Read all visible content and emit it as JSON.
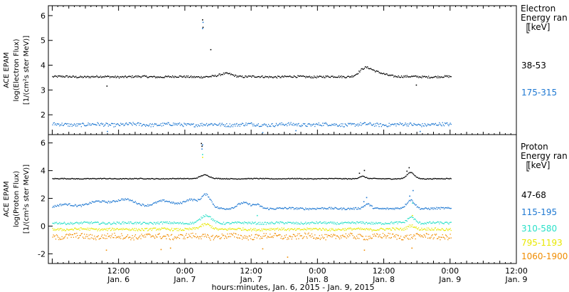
{
  "chart_data": [
    {
      "type": "scatter",
      "panel": "electron",
      "ylabel_lines": [
        "ACE EPAM",
        "log(Electron Flux)",
        "[1/(cm²s ster MeV)]"
      ],
      "legend_title_lines": [
        "Electron",
        "Energy ran",
        "[keV]"
      ],
      "ylim": [
        1.2,
        6.4
      ],
      "yticks": [
        2,
        3,
        4,
        5,
        6
      ],
      "series": [
        {
          "name": "38-53",
          "color": "#000000",
          "baseline": 3.55,
          "jitter": 0.04,
          "features": [
            {
              "t": 31.5,
              "v": 3.68,
              "w": 1.6
            },
            {
              "t": 56.5,
              "v": 3.82,
              "w": 1.5
            },
            {
              "t": 58.5,
              "v": 3.72,
              "w": 2.5
            }
          ],
          "outliers": [
            {
              "t": 27.1,
              "v": 5.85
            },
            {
              "t": 27.2,
              "v": 5.55
            },
            {
              "t": 28.6,
              "v": 4.65
            },
            {
              "t": 9.8,
              "v": 3.18
            },
            {
              "t": 65.8,
              "v": 3.22
            }
          ]
        },
        {
          "name": "175-315",
          "color": "#1e78d2",
          "baseline": 1.62,
          "jitter": 0.07,
          "features": [],
          "outliers": [
            {
              "t": 27.2,
              "v": 5.75
            },
            {
              "t": 27.1,
              "v": 5.5
            },
            {
              "t": 9.9,
              "v": 1.35
            },
            {
              "t": 38.0,
              "v": 1.3
            },
            {
              "t": 44.0,
              "v": 1.38
            },
            {
              "t": 66.5,
              "v": 1.35
            }
          ]
        }
      ]
    },
    {
      "type": "scatter",
      "panel": "proton",
      "ylabel_lines": [
        "ACE EPAM",
        "log(Proton Flux)",
        "[1/(cm²s ster MeV)]"
      ],
      "legend_title_lines": [
        "Proton",
        "Energy ran",
        "[keV]"
      ],
      "ylim": [
        -2.7,
        6.6
      ],
      "yticks": [
        -2,
        0,
        2,
        4,
        6
      ],
      "series": [
        {
          "name": "47-68",
          "color": "#000000",
          "baseline": 3.45,
          "jitter": 0.03,
          "features": [
            {
              "t": 27.5,
              "v": 3.72,
              "w": 1.2
            },
            {
              "t": 56.0,
              "v": 3.62,
              "w": 0.8
            },
            {
              "t": 64.8,
              "v": 3.9,
              "w": 0.9
            }
          ],
          "outliers": [
            {
              "t": 26.9,
              "v": 6.0
            },
            {
              "t": 27.0,
              "v": 5.8
            },
            {
              "t": 64.5,
              "v": 4.25
            },
            {
              "t": 64.1,
              "v": 4.0
            },
            {
              "t": 56.4,
              "v": 4.05
            },
            {
              "t": 55.5,
              "v": 3.85
            }
          ]
        },
        {
          "name": "115-195",
          "color": "#1e78d2",
          "baseline": 1.3,
          "jitter": 0.07,
          "features": [
            {
              "t": 2.5,
              "v": 1.6,
              "w": 2.5
            },
            {
              "t": 8.0,
              "v": 1.75,
              "w": 2.5
            },
            {
              "t": 13.0,
              "v": 1.95,
              "w": 3.0
            },
            {
              "t": 20.0,
              "v": 1.85,
              "w": 2.5
            },
            {
              "t": 25.0,
              "v": 1.95,
              "w": 2.0
            },
            {
              "t": 27.8,
              "v": 2.2,
              "w": 1.2
            },
            {
              "t": 34.5,
              "v": 1.7,
              "w": 1.5
            },
            {
              "t": 37.0,
              "v": 1.55,
              "w": 1.0
            },
            {
              "t": 57.0,
              "v": 1.6,
              "w": 0.8
            },
            {
              "t": 64.8,
              "v": 1.9,
              "w": 1.0
            }
          ],
          "outliers": [
            {
              "t": 27.1,
              "v": 5.9
            },
            {
              "t": 27.0,
              "v": 5.6
            },
            {
              "t": 65.2,
              "v": 2.6
            },
            {
              "t": 64.6,
              "v": 2.2
            },
            {
              "t": 56.8,
              "v": 2.1
            },
            {
              "t": 56.3,
              "v": 1.8
            }
          ]
        },
        {
          "name": "310-580",
          "color": "#2ae0c8",
          "baseline": 0.25,
          "jitter": 0.08,
          "features": [
            {
              "t": 27.8,
              "v": 0.8,
              "w": 1.3
            },
            {
              "t": 64.9,
              "v": 0.7,
              "w": 0.9
            }
          ],
          "outliers": [
            {
              "t": 27.1,
              "v": 5.2
            },
            {
              "t": 65.1,
              "v": 1.7
            },
            {
              "t": 37.0,
              "v": 0.8
            }
          ]
        },
        {
          "name": "795-1193",
          "color": "#e8e800",
          "baseline": -0.2,
          "jitter": 0.09,
          "features": [
            {
              "t": 27.8,
              "v": 0.15,
              "w": 1.3
            },
            {
              "t": 64.9,
              "v": 0.1,
              "w": 0.9
            }
          ],
          "outliers": [
            {
              "t": 27.1,
              "v": 5.0
            },
            {
              "t": 65.1,
              "v": 0.8
            }
          ]
        },
        {
          "name": "1060-1900",
          "color": "#f08c00",
          "baseline": -0.72,
          "jitter": 0.2,
          "features": [],
          "outliers": [
            {
              "t": 9.7,
              "v": -1.7
            },
            {
              "t": 19.6,
              "v": -1.65
            },
            {
              "t": 21.3,
              "v": -1.55
            },
            {
              "t": 42.5,
              "v": -2.2
            },
            {
              "t": 38.0,
              "v": -1.6
            },
            {
              "t": 56.4,
              "v": -1.7
            },
            {
              "t": 65.0,
              "v": -1.55
            }
          ]
        }
      ]
    }
  ],
  "x_axis": {
    "start_label": "Jan. 6, 2015",
    "range_hours": [
      -0.7,
      84
    ],
    "data_end_hours": 72.2,
    "ticks": [
      {
        "hours": 12,
        "time": "12:00",
        "date": "Jan. 6"
      },
      {
        "hours": 24,
        "time": "0:00",
        "date": "Jan. 7"
      },
      {
        "hours": 36,
        "time": "12:00",
        "date": "Jan. 7"
      },
      {
        "hours": 48,
        "time": "0:00",
        "date": "Jan. 8"
      },
      {
        "hours": 60,
        "time": "12:00",
        "date": "Jan. 8"
      },
      {
        "hours": 72,
        "time": "0:00",
        "date": "Jan. 9"
      },
      {
        "hours": 84,
        "time": "12:00",
        "date": "Jan. 9"
      }
    ],
    "title": "hours:minutes, Jan.  6, 2015 - Jan.  9, 2015"
  }
}
